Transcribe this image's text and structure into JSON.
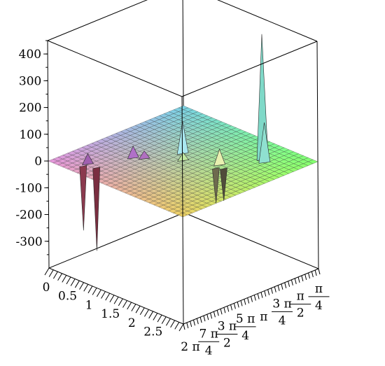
{
  "chart_data": {
    "type": "surface3d",
    "title": "",
    "xlabel": "",
    "ylabel": "",
    "zlabel": "",
    "x_range": [
      0,
      3.14159
    ],
    "x_ticks": [
      {
        "value": 0,
        "label": "0"
      },
      {
        "value": 0.5,
        "label": "0.5"
      },
      {
        "value": 1,
        "label": "1"
      },
      {
        "value": 1.5,
        "label": "1.5"
      },
      {
        "value": 2,
        "label": "2"
      },
      {
        "value": 2.5,
        "label": "2.5"
      }
    ],
    "y_range": [
      6.28318,
      0.5
    ],
    "y_ticks": [
      {
        "value": 6.28318,
        "num": "2 π",
        "den": ""
      },
      {
        "value": 5.49779,
        "num": "7 π",
        "den": "4"
      },
      {
        "value": 4.71239,
        "num": "3 π",
        "den": "2"
      },
      {
        "value": 3.92699,
        "num": "5 π",
        "den": "4"
      },
      {
        "value": 3.14159,
        "num": "π",
        "den": ""
      },
      {
        "value": 2.35619,
        "num": "3 π",
        "den": "4"
      },
      {
        "value": 1.5708,
        "num": "π",
        "den": "2"
      },
      {
        "value": 0.7854,
        "num": "π",
        "den": "4"
      }
    ],
    "z_range": [
      -400,
      450
    ],
    "z_ticks": [
      {
        "value": 400,
        "label": "400"
      },
      {
        "value": 300,
        "label": "300"
      },
      {
        "value": 200,
        "label": "200"
      },
      {
        "value": 100,
        "label": "100"
      },
      {
        "value": 0,
        "label": "0"
      },
      {
        "value": -100,
        "label": "-100"
      },
      {
        "value": -200,
        "label": "-200"
      },
      {
        "value": -300,
        "label": "-300"
      }
    ],
    "surface_level": 0,
    "spikes": [
      {
        "x": 2.45,
        "y": 1.6,
        "z": 470,
        "color": "#7fd9c8"
      },
      {
        "x": 2.55,
        "y": 1.7,
        "z": 150,
        "color": "#8fe0d0"
      },
      {
        "x": 1.35,
        "y": 3.0,
        "z": 120,
        "color": "#a9e8f0"
      },
      {
        "x": 0.9,
        "y": 4.3,
        "z": 45,
        "color": "#b070c8"
      },
      {
        "x": 0.55,
        "y": 5.6,
        "z": 40,
        "color": "#a060b0"
      },
      {
        "x": 1.05,
        "y": 4.1,
        "z": 30,
        "color": "#b070c0"
      },
      {
        "x": 1.55,
        "y": 3.35,
        "z": 30,
        "color": "#c0e8a0"
      },
      {
        "x": 2.1,
        "y": 2.8,
        "z": 60,
        "color": "#e8f0b0"
      },
      {
        "x": 0.55,
        "y": 5.8,
        "z": -240,
        "color": "#8b3a4e"
      },
      {
        "x": 0.75,
        "y": 5.6,
        "z": -310,
        "color": "#7a2e40"
      },
      {
        "x": 2.15,
        "y": 3.05,
        "z": -130,
        "color": "#6e6a4e"
      },
      {
        "x": 2.25,
        "y": 2.9,
        "z": -120,
        "color": "#504c3a"
      }
    ]
  }
}
